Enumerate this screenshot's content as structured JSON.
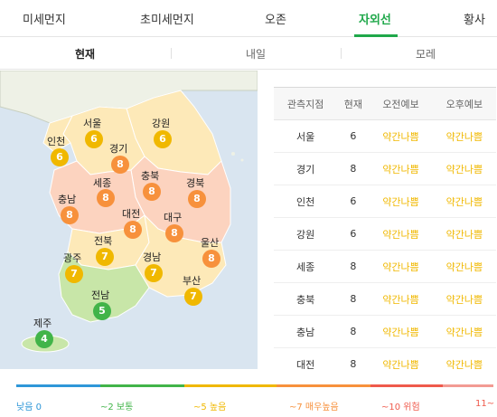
{
  "top_tabs": [
    "미세먼지",
    "초미세먼지",
    "오존",
    "자외선",
    "황사"
  ],
  "sub_tabs": [
    "현재",
    "내일",
    "모레"
  ],
  "colors": {
    "active_green": "#1fa84a",
    "low": "#2f97d8",
    "normal": "#41b449",
    "high": "#f0b800",
    "very_high": "#f7913c",
    "danger": "#ef5a4c"
  },
  "map": {
    "regions": [
      {
        "name": "서울",
        "value": "6"
      },
      {
        "name": "인천",
        "value": "6"
      },
      {
        "name": "강원",
        "value": "6"
      },
      {
        "name": "경기",
        "value": "8"
      },
      {
        "name": "세종",
        "value": "8"
      },
      {
        "name": "충북",
        "value": "8"
      },
      {
        "name": "경북",
        "value": "8"
      },
      {
        "name": "충남",
        "value": "8"
      },
      {
        "name": "대전",
        "value": "8"
      },
      {
        "name": "대구",
        "value": "8"
      },
      {
        "name": "전북",
        "value": "7"
      },
      {
        "name": "울산",
        "value": "8"
      },
      {
        "name": "광주",
        "value": "7"
      },
      {
        "name": "경남",
        "value": "7"
      },
      {
        "name": "부산",
        "value": "7"
      },
      {
        "name": "전남",
        "value": "5"
      },
      {
        "name": "제주",
        "value": "4"
      }
    ]
  },
  "table": {
    "headers": [
      "관측지점",
      "현재",
      "오전예보",
      "오후예보"
    ],
    "rows": [
      [
        "서울",
        "6",
        "약간나쁨",
        "약간나쁨"
      ],
      [
        "경기",
        "8",
        "약간나쁨",
        "약간나쁨"
      ],
      [
        "인천",
        "6",
        "약간나쁨",
        "약간나쁨"
      ],
      [
        "강원",
        "6",
        "약간나쁨",
        "약간나쁨"
      ],
      [
        "세종",
        "8",
        "약간나쁨",
        "약간나쁨"
      ],
      [
        "충북",
        "8",
        "약간나쁨",
        "약간나쁨"
      ],
      [
        "충남",
        "8",
        "약간나쁨",
        "약간나쁨"
      ],
      [
        "대전",
        "8",
        "약간나쁨",
        "약간나쁨"
      ]
    ]
  },
  "legend": [
    {
      "label": "낮음 0"
    },
    {
      "label": "~2 보통"
    },
    {
      "label": "~5 높음"
    },
    {
      "label": "~7 매우높음"
    },
    {
      "label": "~10 위험"
    },
    {
      "label": "11~"
    }
  ]
}
